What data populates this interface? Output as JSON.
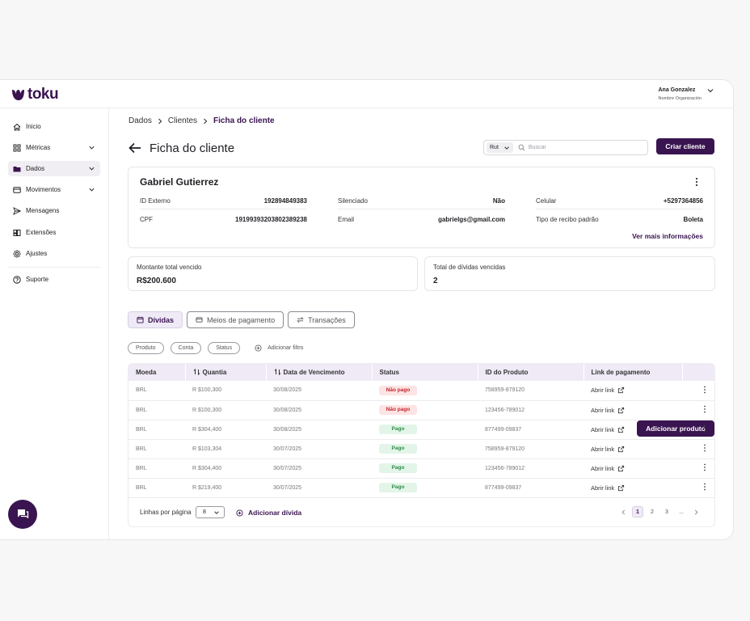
{
  "brand": {
    "name": "toku",
    "color": "#3a1450"
  },
  "user": {
    "name": "Ana Gonzalez",
    "org": "Nombre Organización"
  },
  "sidebar": {
    "items": [
      {
        "label": "Inicio",
        "icon": "home-icon"
      },
      {
        "label": "Métricas",
        "icon": "grid-icon"
      },
      {
        "label": "Dados",
        "icon": "folder-icon"
      },
      {
        "label": "Movimentos",
        "icon": "card-icon"
      },
      {
        "label": "Mensagens",
        "icon": "send-icon"
      },
      {
        "label": "Extensões",
        "icon": "extensions-icon"
      },
      {
        "label": "Ajustes",
        "icon": "gear-icon"
      },
      {
        "label": "Suporte",
        "icon": "help-icon"
      }
    ]
  },
  "breadcrumb": [
    "Dados",
    "Clientes",
    "Ficha do cliente"
  ],
  "page": {
    "title": "Ficha do cliente"
  },
  "search": {
    "select": "Rut",
    "placeholder": "Buscar"
  },
  "actions": {
    "create_client": "Criar cliente",
    "add_product": "Adicionar produto",
    "add_debt": "Adicionar dívida"
  },
  "client": {
    "name": "Gabriel Gutierrez",
    "fields": [
      {
        "label": "ID Externo",
        "value": "192894849383"
      },
      {
        "label": "CPF",
        "value": "19199393203802389238"
      },
      {
        "label": "Silenciado",
        "value": "Não"
      },
      {
        "label": "Email",
        "value": "gabrielgs@gmail.com"
      },
      {
        "label": "Celular",
        "value": "+5297364856"
      },
      {
        "label": "Tipo de recibo padrão",
        "value": "Boleta"
      }
    ],
    "more": "Ver mais informações"
  },
  "stats": [
    {
      "label": "Montante total vencido",
      "value": "R$200.600"
    },
    {
      "label": "Total de dívidas vencidas",
      "value": "2"
    }
  ],
  "tabs": [
    "Dívidas",
    "Meios de pagamento",
    "Transações"
  ],
  "filters": {
    "chips": [
      "Produto",
      "Conta",
      "Status"
    ],
    "add": "Adicionar filtro"
  },
  "table": {
    "columns": [
      "Moeda",
      "Quantia",
      "Data de Vencimento",
      "Status",
      "ID do Produto",
      "Link de pagamento"
    ],
    "rows": [
      {
        "currency": "BRL",
        "amount": "R $100,300",
        "due": "30/08/2025",
        "status": "Não pago",
        "product_id": "758959-879120",
        "link": "Abrir link"
      },
      {
        "currency": "BRL",
        "amount": "R $100,300",
        "due": "30/08/2025",
        "status": "Não pago",
        "product_id": "123456-789012",
        "link": "Abrir link"
      },
      {
        "currency": "BRL",
        "amount": "R $304,400",
        "due": "30/08/2025",
        "status": "Pago",
        "product_id": "877499-09837",
        "link": "Abrir link"
      },
      {
        "currency": "BRL",
        "amount": "R $103,304",
        "due": "30/07/2025",
        "status": "Pago",
        "product_id": "758959-879120",
        "link": "Abrir link"
      },
      {
        "currency": "BRL",
        "amount": "R $304,400",
        "due": "30/07/2025",
        "status": "Pago",
        "product_id": "123456-789012",
        "link": "Abrir link"
      },
      {
        "currency": "BRL",
        "amount": "R $219,400",
        "due": "30/07/2025",
        "status": "Pago",
        "product_id": "877499-09837",
        "link": "Abrir link"
      }
    ]
  },
  "footer": {
    "rows_label": "Linhas por página",
    "rows_value": "8",
    "pages": [
      "1",
      "2",
      "3",
      "..."
    ],
    "current_page": "1"
  }
}
